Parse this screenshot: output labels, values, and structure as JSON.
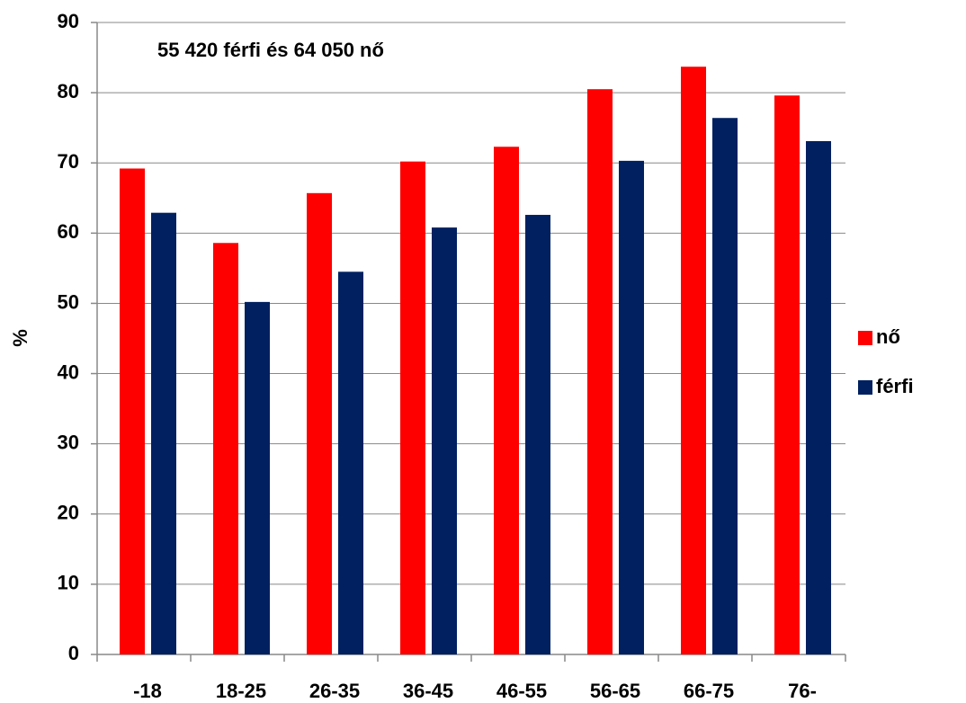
{
  "chart_data": {
    "type": "bar",
    "annotation": "55 420 férfi és 64 050 nő",
    "y_label": "%",
    "categories": [
      "-18",
      "18-25",
      "26-35",
      "36-45",
      "46-55",
      "56-65",
      "66-75",
      "76-"
    ],
    "series": [
      {
        "name": "nő",
        "color": "#ff0000",
        "values": [
          69.2,
          58.6,
          65.7,
          70.2,
          72.3,
          80.5,
          83.7,
          79.6
        ]
      },
      {
        "name": "férfi",
        "color": "#002060",
        "values": [
          62.9,
          50.2,
          54.5,
          60.8,
          62.6,
          70.3,
          76.4,
          73.1
        ]
      }
    ],
    "ylim": [
      0,
      90
    ],
    "yticks": [
      0,
      10,
      20,
      30,
      40,
      50,
      60,
      70,
      80,
      90
    ],
    "grid": true,
    "legend": "right"
  }
}
